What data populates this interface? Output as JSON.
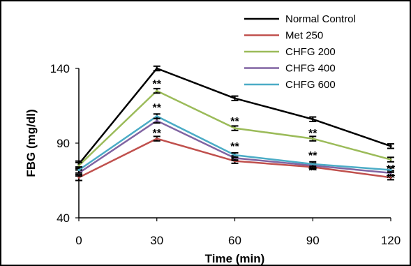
{
  "chart_data": {
    "type": "line",
    "title": "",
    "xlabel": "Time (min)",
    "ylabel": "FBG (mg/dl)",
    "x": [
      0,
      30,
      60,
      90,
      120
    ],
    "xticks": [
      "0",
      "30",
      "60",
      "90",
      "120"
    ],
    "yticks": [
      "40",
      "90",
      "140"
    ],
    "xlim": [
      0,
      120
    ],
    "ylim": [
      40,
      140
    ],
    "grid": false,
    "legend_position": "top-right",
    "error_bars": true,
    "series": [
      {
        "name": "Normal Control",
        "color": "#000000",
        "values": [
          76,
          140,
          120,
          106,
          88
        ],
        "error": [
          2,
          1.5,
          1.5,
          1.5,
          1.5
        ]
      },
      {
        "name": "Met 250",
        "color": "#c0504d",
        "values": [
          67,
          93,
          78,
          74,
          67
        ],
        "error": [
          2,
          1.5,
          1.5,
          1.5,
          1.5
        ]
      },
      {
        "name": "CHFG 200",
        "color": "#9bbb59",
        "values": [
          75,
          125,
          100,
          93,
          79
        ],
        "error": [
          2,
          1.5,
          1.5,
          1.5,
          1.5
        ]
      },
      {
        "name": "CHFG 400",
        "color": "#8064a2",
        "values": [
          70,
          105,
          80,
          75,
          70
        ],
        "error": [
          2,
          1.5,
          1.5,
          1.5,
          1.5
        ]
      },
      {
        "name": "CHFG 600",
        "color": "#4bacc6",
        "values": [
          72,
          108,
          82,
          76,
          72
        ],
        "error": [
          2,
          1.5,
          1.5,
          1.5,
          1.5
        ]
      }
    ],
    "annotations": [
      {
        "text": "**",
        "x": 30,
        "y": 131
      },
      {
        "text": "**",
        "x": 30,
        "y": 115
      },
      {
        "text": "**",
        "x": 30,
        "y": 98
      },
      {
        "text": "**",
        "x": 60,
        "y": 106
      },
      {
        "text": "**",
        "x": 60,
        "y": 89
      },
      {
        "text": "**",
        "x": 90,
        "y": 98
      },
      {
        "text": "**",
        "x": 90,
        "y": 83
      },
      {
        "text": "**",
        "x": 90,
        "y": 73
      },
      {
        "text": "**",
        "x": 120,
        "y": 74
      },
      {
        "text": "**",
        "x": 120,
        "y": 68
      }
    ]
  }
}
